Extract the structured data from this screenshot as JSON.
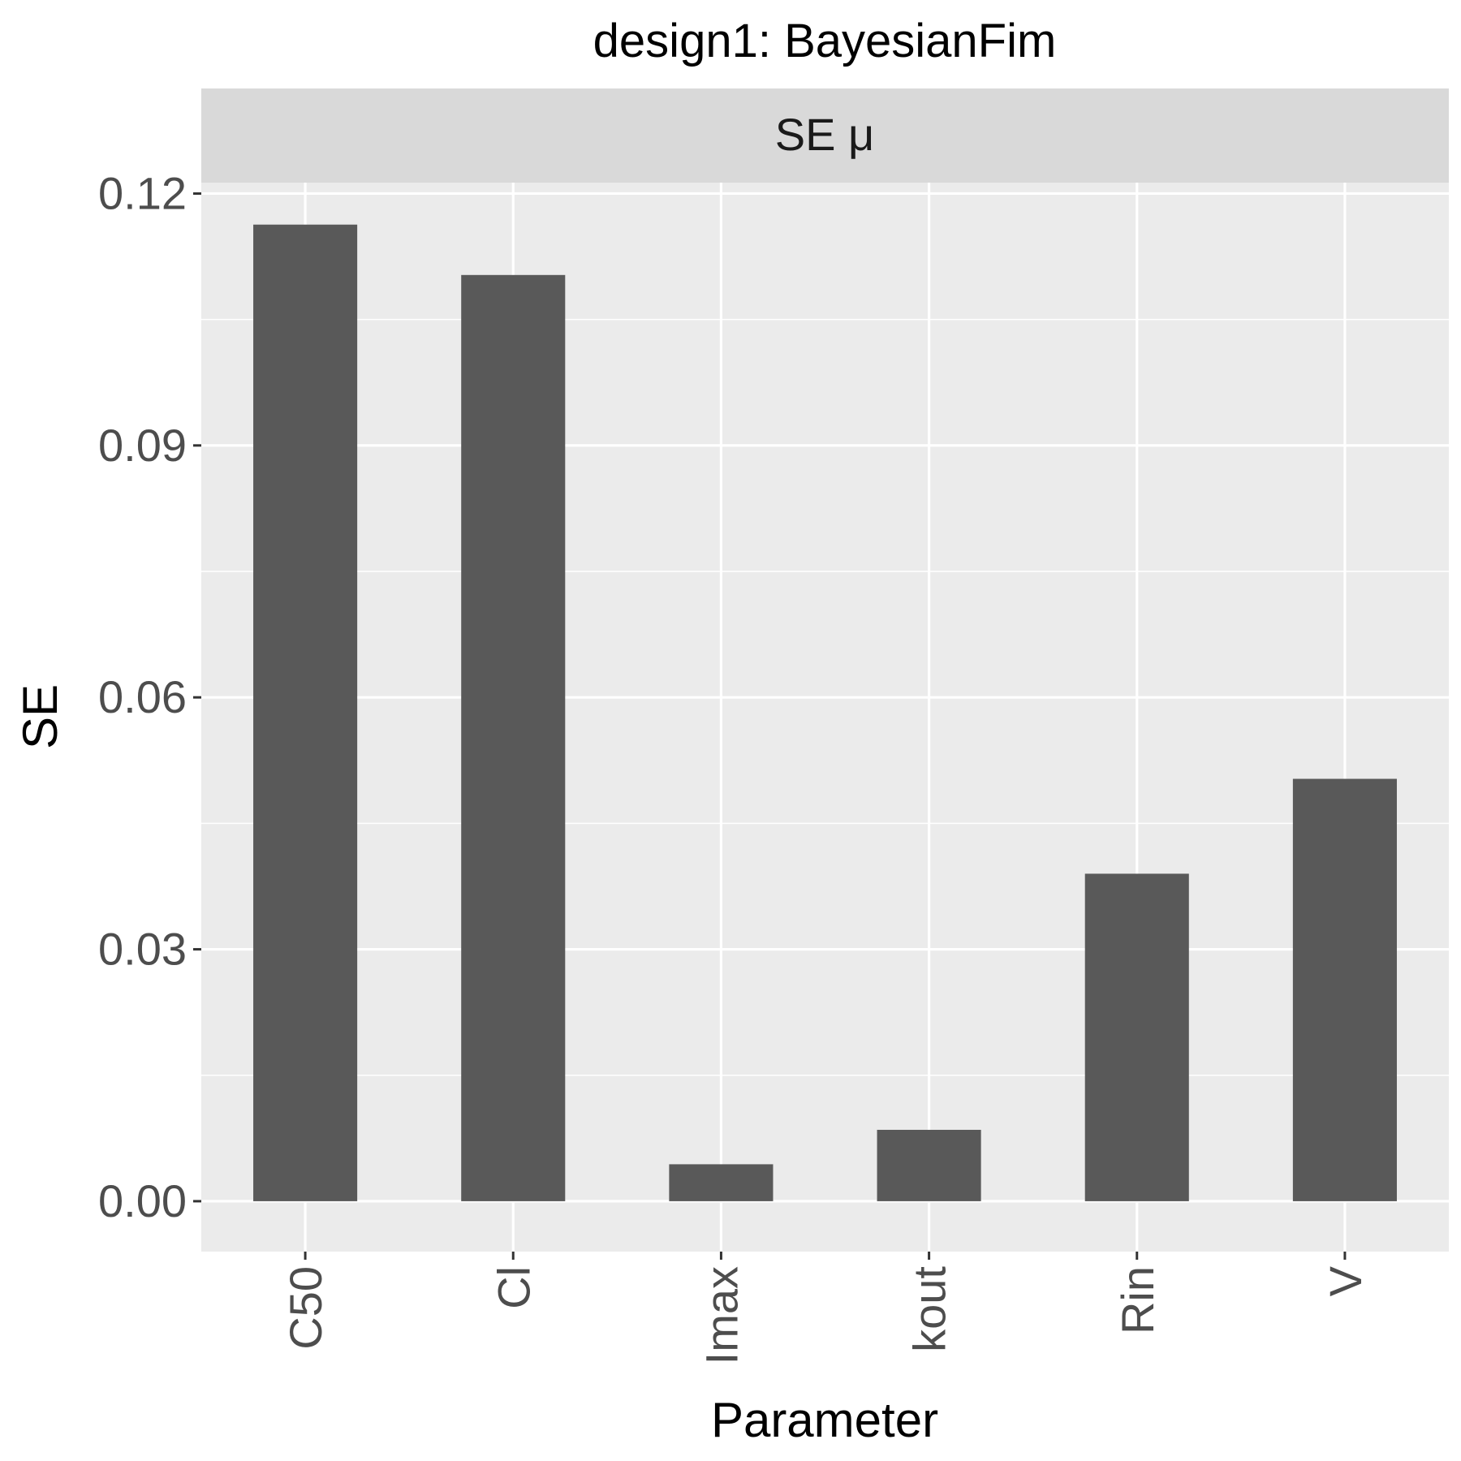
{
  "chart_data": {
    "type": "bar",
    "title": "design1: BayesianFim",
    "facet_label": "SE μ",
    "xlabel": "Parameter",
    "ylabel": "SE",
    "categories": [
      "C50",
      "Cl",
      "Imax",
      "kout",
      "Rin",
      "V"
    ],
    "values": [
      0.1163,
      0.1103,
      0.0044,
      0.0085,
      0.039,
      0.0503
    ],
    "ylim": [
      -0.006,
      0.1213
    ],
    "yticks": [
      0.0,
      0.03,
      0.06,
      0.09,
      0.12
    ],
    "ytick_labels": [
      "0.00",
      "0.03",
      "0.06",
      "0.09",
      "0.12"
    ],
    "grid": true,
    "legend": "none",
    "colors": {
      "bar": "#595959",
      "panel_background": "#ebebeb",
      "strip_background": "#d9d9d9",
      "grid": "#ffffff",
      "tick_text": "#4d4d4d",
      "axis_title": "#000000"
    }
  }
}
